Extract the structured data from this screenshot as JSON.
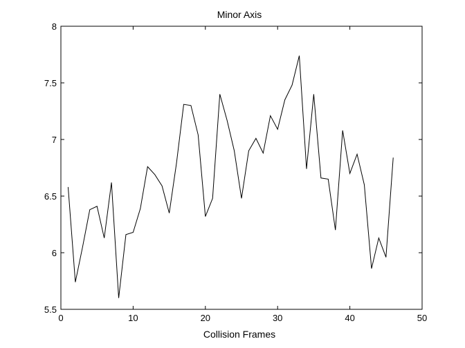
{
  "chart_data": {
    "type": "line",
    "title": "Minor Axis",
    "xlabel": "Collision Frames",
    "ylabel": "",
    "xlim": [
      0,
      50
    ],
    "ylim": [
      5.5,
      8
    ],
    "grid": false,
    "xticks": [
      0,
      10,
      20,
      30,
      40,
      50
    ],
    "yticks": [
      5.5,
      6,
      6.5,
      7,
      7.5,
      8
    ],
    "xtick_labels": [
      "0",
      "10",
      "20",
      "30",
      "40",
      "50"
    ],
    "ytick_labels": [
      "5.5",
      "6",
      "6.5",
      "7",
      "7.5",
      "8"
    ],
    "line_color": "#000000",
    "series": [
      {
        "x": [
          1,
          2,
          3,
          4,
          5,
          6,
          7,
          8,
          9,
          10,
          11,
          12,
          13,
          14,
          15,
          16,
          17,
          18,
          19,
          20,
          21,
          22,
          23,
          24,
          25,
          26,
          27,
          28,
          29,
          30,
          31,
          32,
          33,
          34,
          35,
          36,
          37,
          38,
          39,
          40,
          41,
          42,
          43,
          44,
          45,
          46
        ],
        "values": [
          6.58,
          5.74,
          6.05,
          6.38,
          6.41,
          6.13,
          6.62,
          5.6,
          6.16,
          6.18,
          6.39,
          6.76,
          6.69,
          6.59,
          6.35,
          6.79,
          7.31,
          7.3,
          7.04,
          6.32,
          6.48,
          7.4,
          7.17,
          6.9,
          6.48,
          6.9,
          7.01,
          6.88,
          7.21,
          7.09,
          7.35,
          7.48,
          7.74,
          6.74,
          7.4,
          6.66,
          6.65,
          6.2,
          7.08,
          6.7,
          6.87,
          6.6,
          5.86,
          6.13,
          5.96,
          6.84
        ]
      }
    ]
  }
}
